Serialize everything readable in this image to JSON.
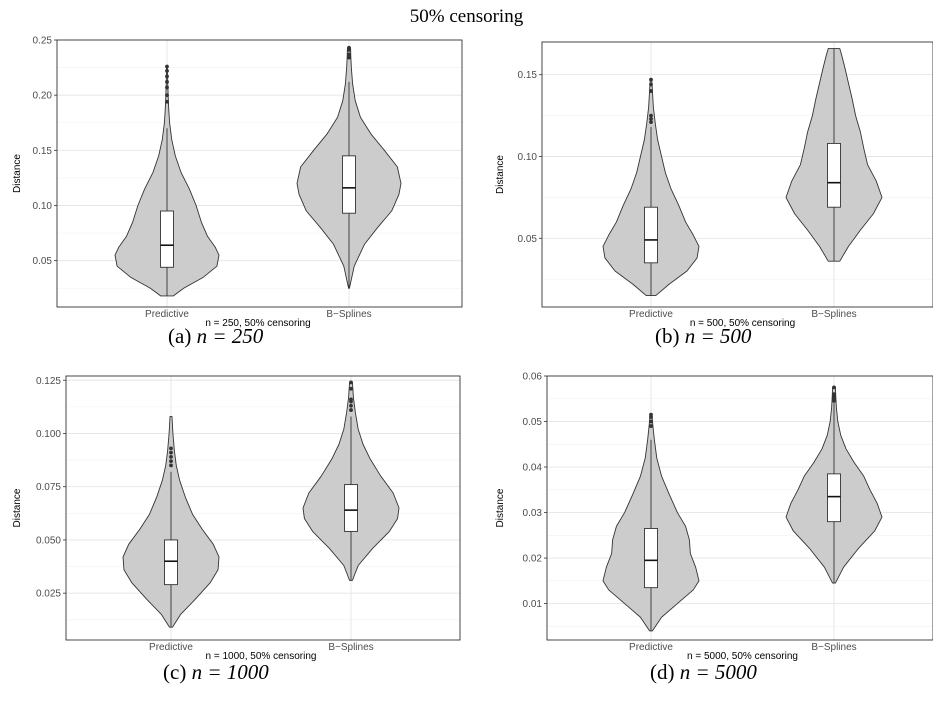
{
  "title": "50% censoring",
  "chart_data": [
    {
      "id": "a",
      "type": "violin",
      "caption_prefix": "(a) ",
      "caption_math": "n = 250",
      "xlabel": "n = 250, 50% censoring",
      "ylabel": "Distance",
      "categories": [
        "Predictive",
        "B−Splines"
      ],
      "ylim": [
        0.008,
        0.25
      ],
      "yticks": [
        0.05,
        0.1,
        0.15,
        0.2,
        0.25
      ],
      "ytick_labels": [
        "0.05",
        "0.10",
        "0.15",
        "0.20",
        "0.25"
      ],
      "series": [
        {
          "category": "Predictive",
          "min": 0.018,
          "q1": 0.044,
          "median": 0.064,
          "q3": 0.095,
          "whisker_high": 0.17,
          "max": 0.226,
          "outliers": [
            0.194,
            0.2,
            0.207,
            0.212,
            0.217,
            0.222,
            0.226
          ],
          "density": [
            [
              0.018,
              0.12
            ],
            [
              0.025,
              0.32
            ],
            [
              0.035,
              0.7
            ],
            [
              0.045,
              0.96
            ],
            [
              0.055,
              1.0
            ],
            [
              0.062,
              0.93
            ],
            [
              0.072,
              0.78
            ],
            [
              0.085,
              0.66
            ],
            [
              0.1,
              0.56
            ],
            [
              0.115,
              0.43
            ],
            [
              0.13,
              0.27
            ],
            [
              0.145,
              0.16
            ],
            [
              0.16,
              0.09
            ],
            [
              0.175,
              0.05
            ],
            [
              0.19,
              0.03
            ],
            [
              0.21,
              0.015
            ],
            [
              0.226,
              0.008
            ]
          ]
        },
        {
          "category": "B−Splines",
          "min": 0.025,
          "q1": 0.093,
          "median": 0.116,
          "q3": 0.145,
          "whisker_high": 0.212,
          "max": 0.243,
          "outliers": [
            0.234,
            0.237,
            0.241,
            0.243
          ],
          "density": [
            [
              0.025,
              0.008
            ],
            [
              0.045,
              0.1
            ],
            [
              0.065,
              0.3
            ],
            [
              0.08,
              0.55
            ],
            [
              0.095,
              0.82
            ],
            [
              0.11,
              0.96
            ],
            [
              0.12,
              1.0
            ],
            [
              0.135,
              0.93
            ],
            [
              0.15,
              0.68
            ],
            [
              0.165,
              0.42
            ],
            [
              0.18,
              0.22
            ],
            [
              0.195,
              0.12
            ],
            [
              0.21,
              0.07
            ],
            [
              0.225,
              0.045
            ],
            [
              0.235,
              0.035
            ],
            [
              0.243,
              0.03
            ]
          ]
        }
      ]
    },
    {
      "id": "b",
      "type": "violin",
      "caption_prefix": "(b) ",
      "caption_math": "n = 500",
      "xlabel": "n = 500, 50% censoring",
      "ylabel": "Distance",
      "categories": [
        "Predictive",
        "B−Splines"
      ],
      "ylim": [
        0.008,
        0.17
      ],
      "yticks": [
        0.05,
        0.1,
        0.15
      ],
      "ytick_labels": [
        "0.05",
        "0.10",
        "0.15"
      ],
      "series": [
        {
          "category": "Predictive",
          "min": 0.015,
          "q1": 0.035,
          "median": 0.049,
          "q3": 0.069,
          "whisker_high": 0.118,
          "max": 0.147,
          "outliers": [
            0.121,
            0.123,
            0.125,
            0.14,
            0.144,
            0.147
          ],
          "density": [
            [
              0.015,
              0.1
            ],
            [
              0.022,
              0.38
            ],
            [
              0.03,
              0.75
            ],
            [
              0.038,
              0.96
            ],
            [
              0.045,
              1.0
            ],
            [
              0.052,
              0.88
            ],
            [
              0.06,
              0.72
            ],
            [
              0.07,
              0.58
            ],
            [
              0.08,
              0.42
            ],
            [
              0.09,
              0.3
            ],
            [
              0.1,
              0.22
            ],
            [
              0.11,
              0.14
            ],
            [
              0.12,
              0.09
            ],
            [
              0.13,
              0.05
            ],
            [
              0.14,
              0.03
            ],
            [
              0.147,
              0.015
            ]
          ]
        },
        {
          "category": "B−Splines",
          "min": 0.036,
          "q1": 0.069,
          "median": 0.084,
          "q3": 0.108,
          "whisker_high": 0.166,
          "max": 0.166,
          "outliers": [],
          "density": [
            [
              0.036,
              0.12
            ],
            [
              0.045,
              0.3
            ],
            [
              0.055,
              0.55
            ],
            [
              0.065,
              0.82
            ],
            [
              0.075,
              1.0
            ],
            [
              0.085,
              0.88
            ],
            [
              0.095,
              0.7
            ],
            [
              0.105,
              0.62
            ],
            [
              0.115,
              0.55
            ],
            [
              0.125,
              0.45
            ],
            [
              0.135,
              0.38
            ],
            [
              0.145,
              0.3
            ],
            [
              0.155,
              0.22
            ],
            [
              0.162,
              0.16
            ],
            [
              0.166,
              0.12
            ]
          ]
        }
      ]
    },
    {
      "id": "c",
      "type": "violin",
      "caption_prefix": "(c) ",
      "caption_math": "n = 1000",
      "xlabel": "n = 1000, 50% censoring",
      "ylabel": "Distance",
      "categories": [
        "Predictive",
        "B−Splines"
      ],
      "ylim": [
        0.003,
        0.127
      ],
      "yticks": [
        0.025,
        0.05,
        0.075,
        0.1,
        0.125
      ],
      "ytick_labels": [
        "0.025",
        "0.050",
        "0.075",
        "0.100",
        "0.125"
      ],
      "series": [
        {
          "category": "Predictive",
          "min": 0.009,
          "q1": 0.029,
          "median": 0.04,
          "q3": 0.05,
          "whisker_high": 0.082,
          "max": 0.108,
          "outliers": [
            0.085,
            0.087,
            0.089,
            0.091,
            0.093
          ],
          "density": [
            [
              0.009,
              0.03
            ],
            [
              0.015,
              0.2
            ],
            [
              0.022,
              0.5
            ],
            [
              0.03,
              0.82
            ],
            [
              0.036,
              0.98
            ],
            [
              0.042,
              1.0
            ],
            [
              0.048,
              0.88
            ],
            [
              0.055,
              0.65
            ],
            [
              0.062,
              0.45
            ],
            [
              0.07,
              0.3
            ],
            [
              0.078,
              0.18
            ],
            [
              0.085,
              0.11
            ],
            [
              0.092,
              0.07
            ],
            [
              0.1,
              0.04
            ],
            [
              0.108,
              0.02
            ]
          ]
        },
        {
          "category": "B−Splines",
          "min": 0.031,
          "q1": 0.054,
          "median": 0.064,
          "q3": 0.076,
          "whisker_high": 0.108,
          "max": 0.124,
          "outliers": [
            0.111,
            0.113,
            0.115,
            0.116,
            0.121,
            0.124
          ],
          "density": [
            [
              0.031,
              0.03
            ],
            [
              0.038,
              0.15
            ],
            [
              0.046,
              0.45
            ],
            [
              0.054,
              0.8
            ],
            [
              0.06,
              0.97
            ],
            [
              0.065,
              1.0
            ],
            [
              0.072,
              0.88
            ],
            [
              0.08,
              0.62
            ],
            [
              0.088,
              0.4
            ],
            [
              0.095,
              0.25
            ],
            [
              0.102,
              0.15
            ],
            [
              0.11,
              0.09
            ],
            [
              0.117,
              0.05
            ],
            [
              0.124,
              0.03
            ]
          ]
        }
      ]
    },
    {
      "id": "d",
      "type": "violin",
      "caption_prefix": "(d) ",
      "caption_math": "n = 5000",
      "xlabel": "n = 5000, 50% censoring",
      "ylabel": "Distance",
      "categories": [
        "Predictive",
        "B−Splines"
      ],
      "ylim": [
        0.002,
        0.06
      ],
      "yticks": [
        0.01,
        0.02,
        0.03,
        0.04,
        0.05,
        0.06
      ],
      "ytick_labels": [
        "0.01",
        "0.02",
        "0.03",
        "0.04",
        "0.05",
        "0.06"
      ],
      "series": [
        {
          "category": "Predictive",
          "min": 0.004,
          "q1": 0.0135,
          "median": 0.0195,
          "q3": 0.0265,
          "whisker_high": 0.046,
          "max": 0.0515,
          "outliers": [
            0.049,
            0.05,
            0.051,
            0.0515
          ],
          "density": [
            [
              0.004,
              0.03
            ],
            [
              0.007,
              0.22
            ],
            [
              0.01,
              0.55
            ],
            [
              0.013,
              0.88
            ],
            [
              0.015,
              1.0
            ],
            [
              0.018,
              0.93
            ],
            [
              0.021,
              0.82
            ],
            [
              0.024,
              0.8
            ],
            [
              0.027,
              0.72
            ],
            [
              0.03,
              0.55
            ],
            [
              0.034,
              0.38
            ],
            [
              0.038,
              0.22
            ],
            [
              0.042,
              0.12
            ],
            [
              0.046,
              0.07
            ],
            [
              0.049,
              0.04
            ],
            [
              0.0515,
              0.02
            ]
          ]
        },
        {
          "category": "B−Splines",
          "min": 0.0145,
          "q1": 0.028,
          "median": 0.0335,
          "q3": 0.0385,
          "whisker_high": 0.054,
          "max": 0.0575,
          "outliers": [
            0.0545,
            0.055,
            0.0555,
            0.056,
            0.0575
          ],
          "density": [
            [
              0.0145,
              0.03
            ],
            [
              0.018,
              0.2
            ],
            [
              0.022,
              0.5
            ],
            [
              0.026,
              0.85
            ],
            [
              0.029,
              1.0
            ],
            [
              0.032,
              0.9
            ],
            [
              0.035,
              0.75
            ],
            [
              0.038,
              0.62
            ],
            [
              0.041,
              0.42
            ],
            [
              0.044,
              0.25
            ],
            [
              0.047,
              0.14
            ],
            [
              0.05,
              0.08
            ],
            [
              0.053,
              0.05
            ],
            [
              0.056,
              0.035
            ],
            [
              0.0575,
              0.03
            ]
          ]
        }
      ]
    }
  ]
}
